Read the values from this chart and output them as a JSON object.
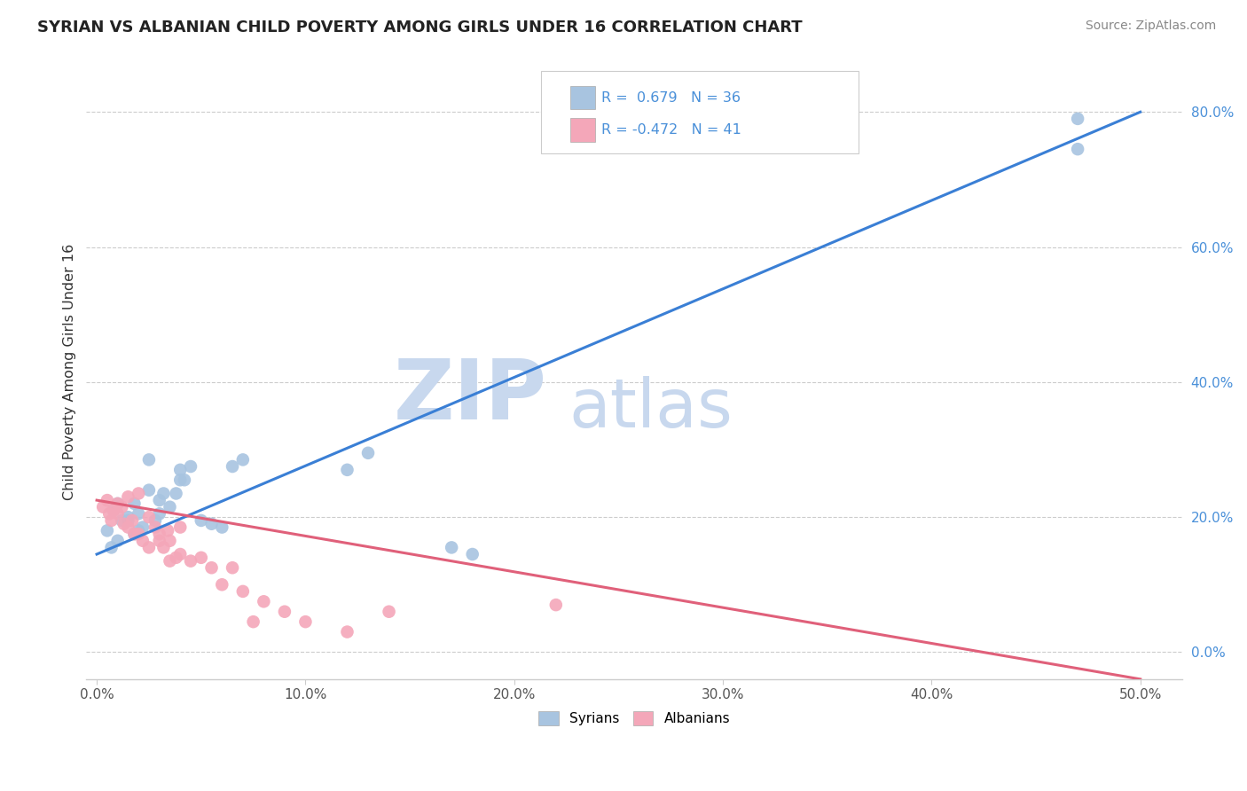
{
  "title": "SYRIAN VS ALBANIAN CHILD POVERTY AMONG GIRLS UNDER 16 CORRELATION CHART",
  "source": "Source: ZipAtlas.com",
  "ylabel": "Child Poverty Among Girls Under 16",
  "xlim": [
    -0.005,
    0.52
  ],
  "ylim": [
    -0.04,
    0.87
  ],
  "xticks": [
    0.0,
    0.1,
    0.2,
    0.3,
    0.4,
    0.5
  ],
  "xticklabels": [
    "0.0%",
    "10.0%",
    "20.0%",
    "30.0%",
    "40.0%",
    "50.0%"
  ],
  "yticks": [
    0.0,
    0.2,
    0.4,
    0.6,
    0.8
  ],
  "yticklabels": [
    "0.0%",
    "20.0%",
    "40.0%",
    "60.0%",
    "80.0%"
  ],
  "syrian_color": "#a8c4e0",
  "albanian_color": "#f4a7b9",
  "syrian_line_color": "#3a7fd5",
  "albanian_line_color": "#e0607a",
  "syrian_R": 0.679,
  "syrian_N": 36,
  "albanian_R": -0.472,
  "albanian_N": 41,
  "watermark_zip": "ZIP",
  "watermark_atlas": "atlas",
  "watermark_color": "#c8d8ee",
  "legend_text_color": "#4a90d9",
  "background_color": "#ffffff",
  "syrian_line_x0": 0.0,
  "syrian_line_y0": 0.145,
  "syrian_line_x1": 0.5,
  "syrian_line_y1": 0.8,
  "albanian_line_x0": 0.0,
  "albanian_line_y0": 0.225,
  "albanian_line_x1": 0.5,
  "albanian_line_y1": -0.04,
  "syrian_scatter_x": [
    0.005,
    0.007,
    0.008,
    0.01,
    0.01,
    0.012,
    0.015,
    0.015,
    0.018,
    0.018,
    0.02,
    0.02,
    0.022,
    0.025,
    0.025,
    0.028,
    0.03,
    0.03,
    0.032,
    0.035,
    0.038,
    0.04,
    0.04,
    0.042,
    0.045,
    0.05,
    0.055,
    0.06,
    0.065,
    0.07,
    0.12,
    0.13,
    0.17,
    0.18,
    0.47,
    0.47
  ],
  "syrian_scatter_y": [
    0.18,
    0.155,
    0.21,
    0.22,
    0.165,
    0.195,
    0.2,
    0.195,
    0.22,
    0.175,
    0.18,
    0.205,
    0.185,
    0.24,
    0.285,
    0.195,
    0.205,
    0.225,
    0.235,
    0.215,
    0.235,
    0.255,
    0.27,
    0.255,
    0.275,
    0.195,
    0.19,
    0.185,
    0.275,
    0.285,
    0.27,
    0.295,
    0.155,
    0.145,
    0.79,
    0.745
  ],
  "albanian_scatter_x": [
    0.003,
    0.005,
    0.006,
    0.007,
    0.008,
    0.01,
    0.01,
    0.012,
    0.013,
    0.015,
    0.015,
    0.017,
    0.018,
    0.02,
    0.02,
    0.022,
    0.025,
    0.025,
    0.028,
    0.03,
    0.03,
    0.032,
    0.034,
    0.035,
    0.035,
    0.038,
    0.04,
    0.04,
    0.045,
    0.05,
    0.055,
    0.06,
    0.065,
    0.07,
    0.075,
    0.08,
    0.09,
    0.1,
    0.12,
    0.14,
    0.22
  ],
  "albanian_scatter_y": [
    0.215,
    0.225,
    0.205,
    0.195,
    0.21,
    0.22,
    0.205,
    0.215,
    0.19,
    0.23,
    0.185,
    0.195,
    0.175,
    0.235,
    0.175,
    0.165,
    0.2,
    0.155,
    0.185,
    0.165,
    0.175,
    0.155,
    0.18,
    0.135,
    0.165,
    0.14,
    0.145,
    0.185,
    0.135,
    0.14,
    0.125,
    0.1,
    0.125,
    0.09,
    0.045,
    0.075,
    0.06,
    0.045,
    0.03,
    0.06,
    0.07
  ],
  "figsize": [
    14.06,
    8.92
  ],
  "dpi": 100
}
